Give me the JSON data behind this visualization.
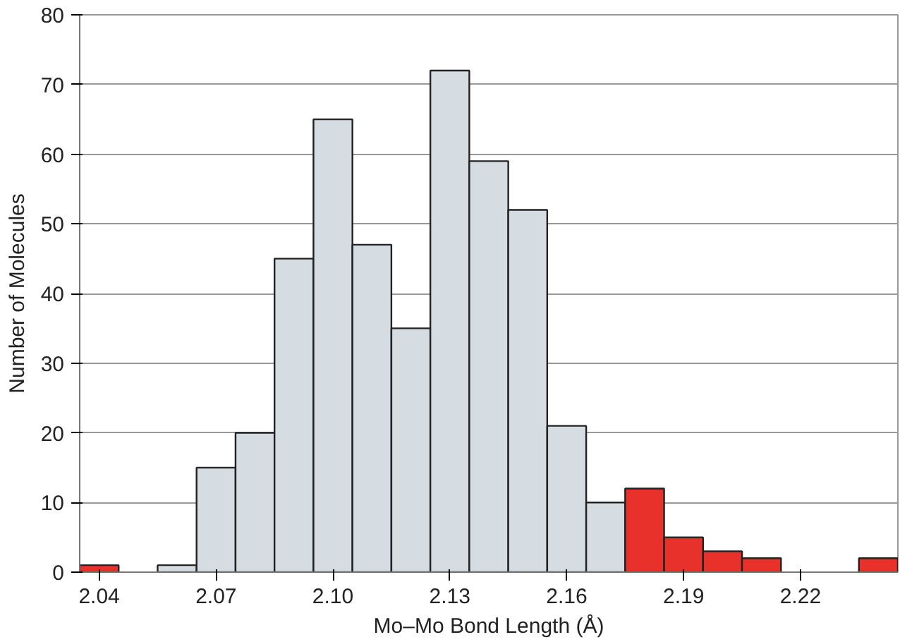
{
  "chart_data": {
    "type": "histogram",
    "xlabel": "Mo–Mo Bond Length (Å)",
    "ylabel": "Number of Molecules",
    "bins": [
      2.035,
      2.045,
      2.055,
      2.065,
      2.075,
      2.085,
      2.095,
      2.105,
      2.115,
      2.125,
      2.135,
      2.145,
      2.155,
      2.165,
      2.175,
      2.185,
      2.195,
      2.205,
      2.215,
      2.225,
      2.235,
      2.245
    ],
    "values": [
      1,
      0,
      1,
      15,
      20,
      45,
      65,
      47,
      35,
      72,
      59,
      52,
      21,
      10,
      12,
      5,
      3,
      2,
      0,
      0,
      2
    ],
    "colors": [
      "#e8312a",
      "#d5dde2",
      "#d5dde2",
      "#d5dde2",
      "#d5dde2",
      "#d5dde2",
      "#d5dde2",
      "#d5dde2",
      "#d5dde2",
      "#d5dde2",
      "#d5dde2",
      "#d5dde2",
      "#d5dde2",
      "#d5dde2",
      "#e8312a",
      "#e8312a",
      "#e8312a",
      "#e8312a",
      "#e8312a",
      "#e8312a",
      "#e8312a"
    ],
    "xlim": [
      2.035,
      2.245
    ],
    "xticks": [
      2.04,
      2.07,
      {
        "value": 2.1,
        "label": "2.10"
      },
      2.13,
      2.16,
      2.19,
      2.22
    ],
    "ylim": [
      0,
      80
    ],
    "yticks": [
      0,
      10,
      20,
      30,
      40,
      50,
      60,
      70,
      80
    ],
    "grid": "y"
  }
}
